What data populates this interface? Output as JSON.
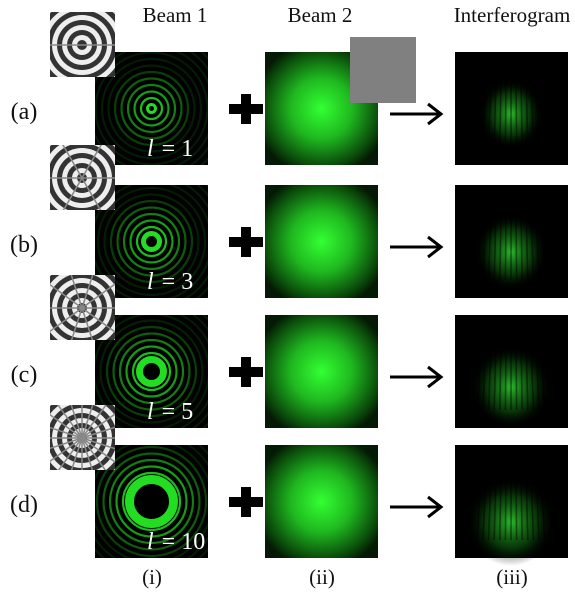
{
  "header": {
    "columns": [
      "Beam 1",
      "Beam 2",
      "Interferogram"
    ]
  },
  "rows": [
    {
      "label": "(a)",
      "charge": {
        "symbol": "l",
        "text": "= 1"
      }
    },
    {
      "label": "(b)",
      "charge": {
        "symbol": "l",
        "text": "= 3"
      }
    },
    {
      "label": "(c)",
      "charge": {
        "symbol": "l",
        "text": "= 5"
      }
    },
    {
      "label": "(d)",
      "charge": {
        "symbol": "l",
        "text": "= 10"
      }
    }
  ],
  "footer": {
    "columns": [
      "(i)",
      "(ii)",
      "(iii)"
    ]
  }
}
